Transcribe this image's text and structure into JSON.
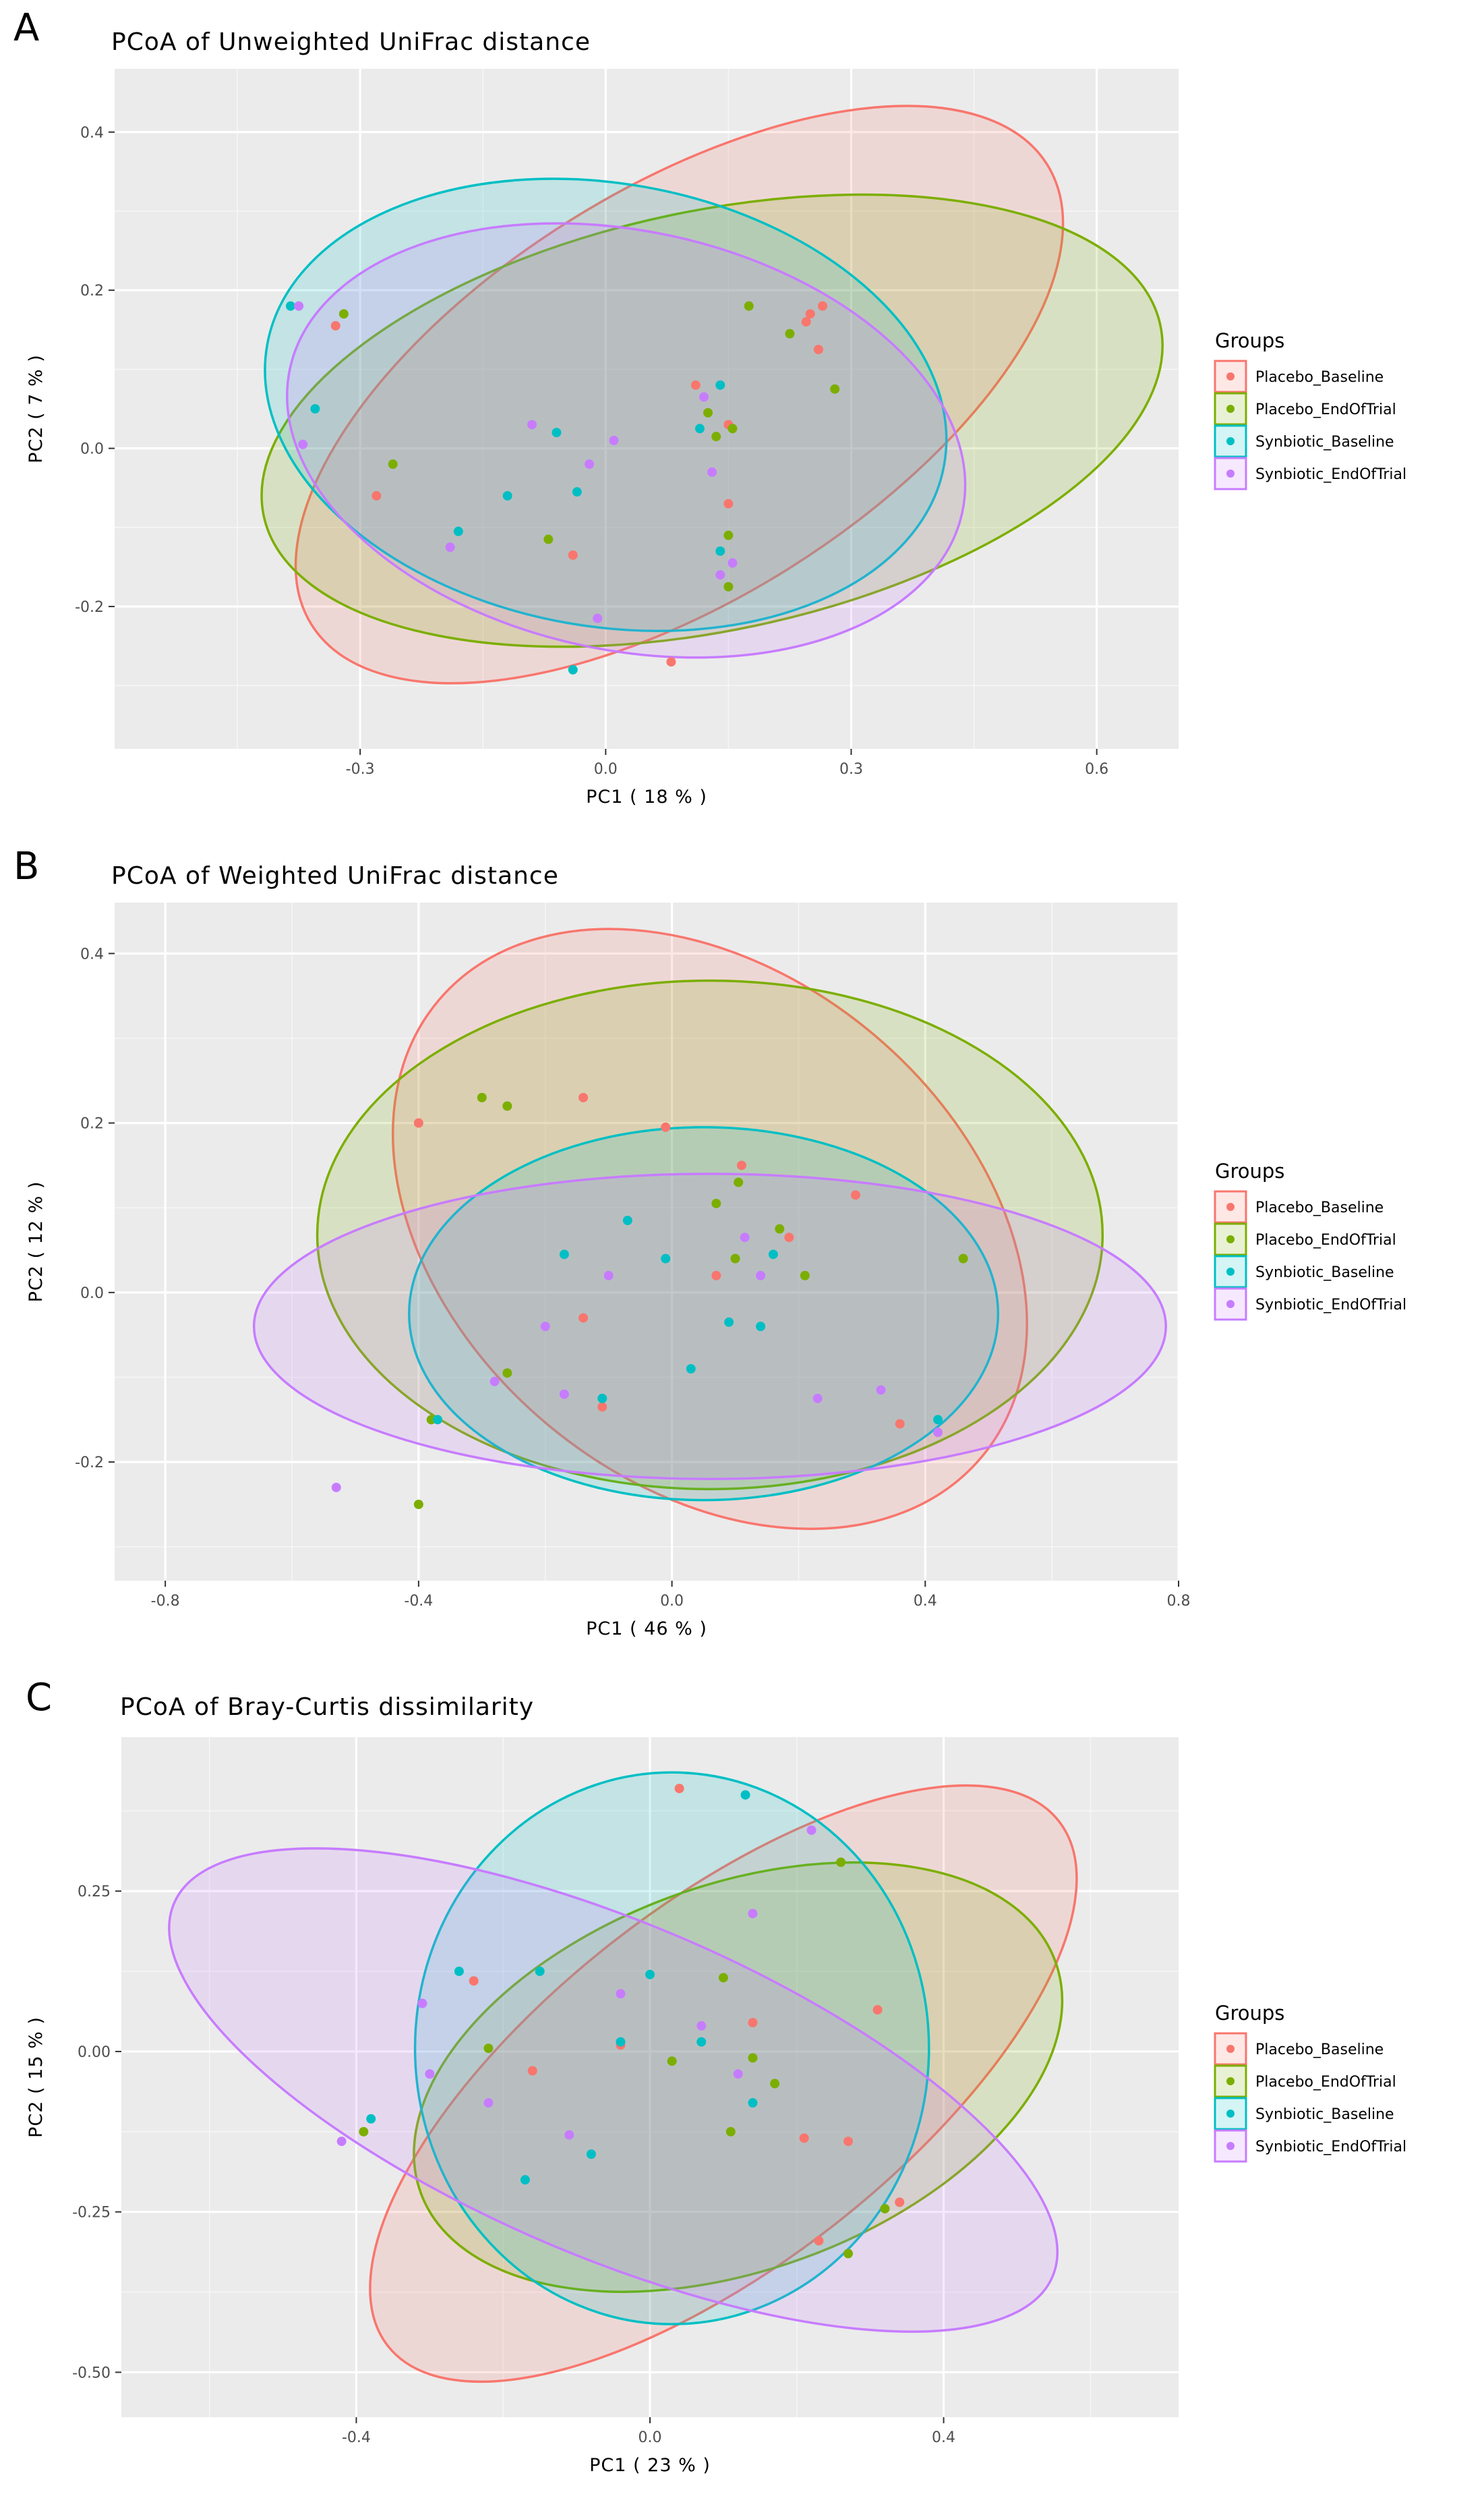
{
  "chart_data": [
    {
      "type": "scatter",
      "panel_letter": "A",
      "title": "PCoA of Unweighted UniFrac distance",
      "xlabel": "PC1 ( 18 % )",
      "ylabel": "PC2 ( 7 % )",
      "xlim": [
        -0.6,
        0.7
      ],
      "ylim": [
        -0.38,
        0.48
      ],
      "x_ticks": [
        -0.3,
        0.0,
        0.3,
        0.6
      ],
      "x_tick_labels": [
        "-0.3",
        "0.0",
        "0.3",
        "0.6"
      ],
      "y_ticks": [
        -0.2,
        0.0,
        0.2,
        0.4
      ],
      "y_tick_labels": [
        "-0.2",
        "0.0",
        "0.2",
        "0.4"
      ],
      "legend_title": "Groups",
      "legend_position": "right",
      "series": [
        {
          "name": "Placebo_Baseline",
          "color": "#F8766D",
          "points": [
            [
              -0.33,
              0.155
            ],
            [
              0.25,
              0.17
            ],
            [
              0.265,
              0.18
            ],
            [
              0.245,
              0.16
            ],
            [
              0.26,
              0.125
            ],
            [
              0.11,
              0.08
            ],
            [
              0.15,
              0.03
            ],
            [
              0.15,
              -0.07
            ],
            [
              -0.28,
              -0.06
            ],
            [
              -0.04,
              -0.135
            ],
            [
              0.08,
              -0.27
            ]
          ],
          "ellipse": {
            "cx": 0.09,
            "cy": 0.068,
            "rx": 0.53,
            "ry": 0.26,
            "angle": 32
          }
        },
        {
          "name": "Placebo_EndOfTrial",
          "color": "#7CAE00",
          "points": [
            [
              -0.32,
              0.17
            ],
            [
              0.175,
              0.18
            ],
            [
              0.225,
              0.145
            ],
            [
              0.28,
              0.075
            ],
            [
              0.155,
              0.025
            ],
            [
              0.135,
              0.015
            ],
            [
              0.125,
              0.045
            ],
            [
              -0.26,
              -0.02
            ],
            [
              -0.07,
              -0.115
            ],
            [
              0.15,
              -0.11
            ],
            [
              0.15,
              -0.175
            ]
          ],
          "ellipse": {
            "cx": 0.13,
            "cy": 0.035,
            "rx": 0.56,
            "ry": 0.265,
            "angle": 12
          }
        },
        {
          "name": "Synbiotic_Baseline",
          "color": "#00BFC4",
          "points": [
            [
              -0.385,
              0.18
            ],
            [
              -0.355,
              0.05
            ],
            [
              0.14,
              0.08
            ],
            [
              0.115,
              0.025
            ],
            [
              -0.06,
              0.02
            ],
            [
              -0.035,
              -0.055
            ],
            [
              -0.12,
              -0.06
            ],
            [
              -0.18,
              -0.105
            ],
            [
              0.14,
              -0.13
            ],
            [
              -0.04,
              -0.28
            ]
          ],
          "ellipse": {
            "cx": 0.0,
            "cy": 0.055,
            "rx": 0.42,
            "ry": 0.28,
            "angle": -10
          }
        },
        {
          "name": "Synbiotic_EndOfTrial",
          "color": "#C77CFF",
          "points": [
            [
              -0.375,
              0.18
            ],
            [
              -0.37,
              0.005
            ],
            [
              -0.09,
              0.03
            ],
            [
              0.01,
              0.01
            ],
            [
              0.12,
              0.065
            ],
            [
              -0.02,
              -0.02
            ],
            [
              0.13,
              -0.03
            ],
            [
              -0.19,
              -0.125
            ],
            [
              0.14,
              -0.16
            ],
            [
              0.155,
              -0.145
            ],
            [
              -0.01,
              -0.215
            ]
          ],
          "ellipse": {
            "cx": 0.025,
            "cy": 0.01,
            "rx": 0.42,
            "ry": 0.265,
            "angle": -12
          }
        }
      ]
    },
    {
      "type": "scatter",
      "panel_letter": "B",
      "title": "PCoA of Weighted UniFrac distance",
      "xlabel": "PC1 ( 46 % )",
      "ylabel": "PC2 ( 12 % )",
      "xlim": [
        -0.88,
        0.8
      ],
      "ylim": [
        -0.34,
        0.46
      ],
      "x_ticks": [
        -0.8,
        -0.4,
        0.0,
        0.4,
        0.8
      ],
      "x_tick_labels": [
        "-0.8",
        "-0.4",
        "0.0",
        "0.4",
        "0.8"
      ],
      "y_ticks": [
        -0.2,
        0.0,
        0.2,
        0.4
      ],
      "y_tick_labels": [
        "-0.2",
        "0.0",
        "0.2",
        "0.4"
      ],
      "legend_title": "Groups",
      "legend_position": "right",
      "series": [
        {
          "name": "Placebo_Baseline",
          "color": "#F8766D",
          "points": [
            [
              -0.4,
              0.2
            ],
            [
              -0.14,
              0.23
            ],
            [
              -0.01,
              0.195
            ],
            [
              0.11,
              0.15
            ],
            [
              0.29,
              0.115
            ],
            [
              0.185,
              0.065
            ],
            [
              0.07,
              0.02
            ],
            [
              -0.14,
              -0.03
            ],
            [
              -0.11,
              -0.135
            ],
            [
              0.36,
              -0.155
            ]
          ],
          "ellipse": {
            "cx": 0.06,
            "cy": 0.075,
            "rx": 0.56,
            "ry": 0.3,
            "angle": -40
          }
        },
        {
          "name": "Placebo_EndOfTrial",
          "color": "#7CAE00",
          "points": [
            [
              -0.3,
              0.23
            ],
            [
              -0.26,
              0.22
            ],
            [
              0.07,
              0.105
            ],
            [
              0.105,
              0.13
            ],
            [
              0.17,
              0.075
            ],
            [
              0.1,
              0.04
            ],
            [
              0.21,
              0.02
            ],
            [
              0.46,
              0.04
            ],
            [
              -0.26,
              -0.095
            ],
            [
              -0.38,
              -0.15
            ],
            [
              -0.4,
              -0.25
            ]
          ],
          "ellipse": {
            "cx": 0.06,
            "cy": 0.068,
            "rx": 0.62,
            "ry": 0.3,
            "angle": 0
          }
        },
        {
          "name": "Synbiotic_Baseline",
          "color": "#00BFC4",
          "points": [
            [
              -0.07,
              0.085
            ],
            [
              -0.17,
              0.045
            ],
            [
              -0.01,
              0.04
            ],
            [
              0.16,
              0.045
            ],
            [
              0.09,
              -0.035
            ],
            [
              0.14,
              -0.04
            ],
            [
              0.03,
              -0.09
            ],
            [
              -0.11,
              -0.125
            ],
            [
              -0.37,
              -0.15
            ],
            [
              0.42,
              -0.15
            ]
          ],
          "ellipse": {
            "cx": 0.05,
            "cy": -0.025,
            "rx": 0.465,
            "ry": 0.22,
            "angle": 0
          }
        },
        {
          "name": "Synbiotic_EndOfTrial",
          "color": "#C77CFF",
          "points": [
            [
              -0.1,
              0.02
            ],
            [
              0.115,
              0.065
            ],
            [
              0.14,
              0.02
            ],
            [
              -0.2,
              -0.04
            ],
            [
              -0.28,
              -0.105
            ],
            [
              -0.17,
              -0.12
            ],
            [
              0.23,
              -0.125
            ],
            [
              0.33,
              -0.115
            ],
            [
              0.42,
              -0.165
            ],
            [
              -0.53,
              -0.23
            ]
          ],
          "ellipse": {
            "cx": 0.06,
            "cy": -0.04,
            "rx": 0.72,
            "ry": 0.18,
            "angle": 0
          }
        }
      ]
    },
    {
      "type": "scatter",
      "panel_letter": "C",
      "title": "PCoA of Bray-Curtis dissimilarity",
      "xlabel": "PC1 ( 23 % )",
      "ylabel": "PC2 ( 15 % )",
      "xlim": [
        -0.72,
        0.72
      ],
      "ylim": [
        -0.57,
        0.49
      ],
      "x_ticks": [
        -0.4,
        0.0,
        0.4
      ],
      "x_tick_labels": [
        "-0.4",
        "0.0",
        "0.4"
      ],
      "y_ticks": [
        -0.5,
        -0.25,
        0.0,
        0.25
      ],
      "y_tick_labels": [
        "-0.50",
        "-0.25",
        "0.00",
        "0.25"
      ],
      "legend_title": "Groups",
      "legend_position": "right",
      "series": [
        {
          "name": "Placebo_Baseline",
          "color": "#F8766D",
          "points": [
            [
              0.04,
              0.41
            ],
            [
              -0.24,
              0.11
            ],
            [
              0.14,
              0.045
            ],
            [
              0.31,
              0.065
            ],
            [
              -0.04,
              0.01
            ],
            [
              -0.16,
              -0.03
            ],
            [
              0.21,
              -0.135
            ],
            [
              0.27,
              -0.14
            ],
            [
              0.34,
              -0.235
            ],
            [
              0.23,
              -0.295
            ]
          ],
          "ellipse": {
            "cx": 0.1,
            "cy": -0.05,
            "rx": 0.58,
            "ry": 0.28,
            "angle": 38
          }
        },
        {
          "name": "Placebo_EndOfTrial",
          "color": "#7CAE00",
          "points": [
            [
              0.26,
              0.295
            ],
            [
              0.1,
              0.115
            ],
            [
              0.14,
              -0.01
            ],
            [
              0.17,
              -0.05
            ],
            [
              -0.22,
              0.005
            ],
            [
              0.03,
              -0.015
            ],
            [
              0.11,
              -0.125
            ],
            [
              -0.39,
              -0.125
            ],
            [
              0.32,
              -0.245
            ],
            [
              0.27,
              -0.315
            ]
          ],
          "ellipse": {
            "cx": 0.12,
            "cy": -0.04,
            "rx": 0.46,
            "ry": 0.3,
            "angle": 20
          }
        },
        {
          "name": "Synbiotic_Baseline",
          "color": "#00BFC4",
          "points": [
            [
              0.13,
              0.4
            ],
            [
              -0.26,
              0.125
            ],
            [
              -0.15,
              0.125
            ],
            [
              0.0,
              0.12
            ],
            [
              0.07,
              0.015
            ],
            [
              -0.04,
              0.015
            ],
            [
              0.14,
              -0.08
            ],
            [
              -0.38,
              -0.105
            ],
            [
              -0.08,
              -0.16
            ],
            [
              -0.17,
              -0.2
            ]
          ],
          "ellipse": {
            "cx": 0.03,
            "cy": 0.005,
            "rx": 0.35,
            "ry": 0.43,
            "angle": 0
          }
        },
        {
          "name": "Synbiotic_EndOfTrial",
          "color": "#C77CFF",
          "points": [
            [
              0.22,
              0.345
            ],
            [
              0.14,
              0.215
            ],
            [
              -0.04,
              0.09
            ],
            [
              0.07,
              0.04
            ],
            [
              -0.31,
              0.075
            ],
            [
              -0.3,
              -0.035
            ],
            [
              0.12,
              -0.035
            ],
            [
              -0.22,
              -0.08
            ],
            [
              -0.11,
              -0.13
            ],
            [
              -0.42,
              -0.14
            ]
          ],
          "ellipse": {
            "cx": -0.05,
            "cy": -0.06,
            "rx": 0.65,
            "ry": 0.26,
            "angle": -23
          }
        }
      ]
    }
  ]
}
